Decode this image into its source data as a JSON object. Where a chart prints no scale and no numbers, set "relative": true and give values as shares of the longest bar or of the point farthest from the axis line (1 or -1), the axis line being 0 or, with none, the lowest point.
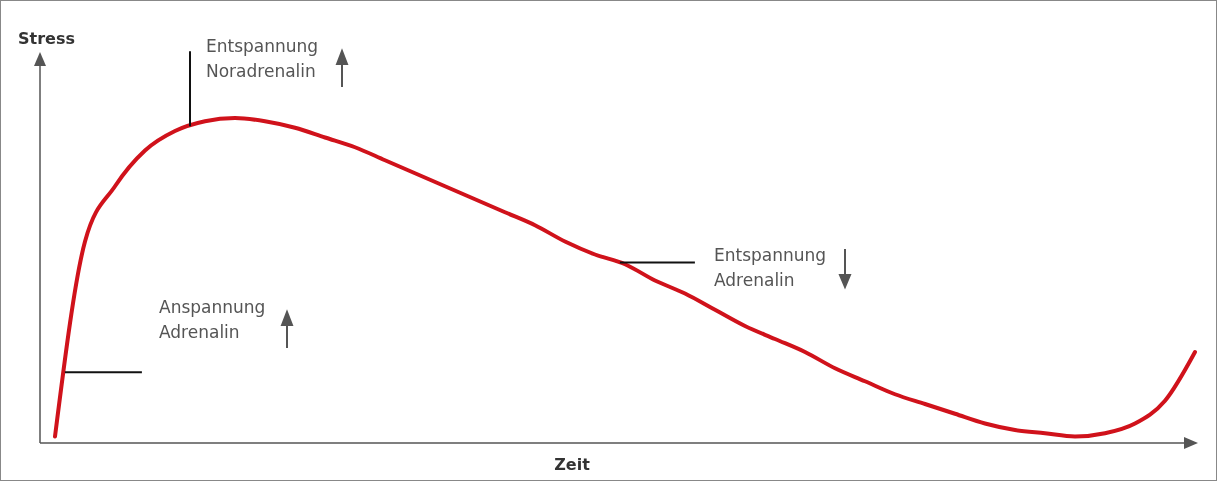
{
  "chart_data": {
    "type": "line",
    "relative": true,
    "xlabel": "Zeit",
    "ylabel": "Stress",
    "categories": [
      null,
      null,
      null,
      null,
      null,
      null,
      null,
      null,
      null,
      null,
      null,
      null,
      null,
      null,
      null,
      null,
      null,
      null,
      null,
      null,
      null,
      null,
      null,
      null,
      null,
      null,
      null,
      null,
      null,
      null,
      null,
      null,
      null,
      null,
      null,
      null,
      null,
      null,
      null
    ],
    "series": [
      {
        "color": "#d0121b",
        "values": [
          0.02,
          0.62,
          0.79,
          0.9,
          0.96,
          0.99,
          1,
          0.99,
          0.97,
          0.94,
          0.91,
          0.87,
          0.83,
          0.79,
          0.75,
          0.71,
          0.67,
          0.62,
          0.58,
          0.55,
          0.5,
          0.46,
          0.41,
          0.36,
          0.32,
          0.28,
          0.23,
          0.19,
          0.15,
          0.12,
          0.09,
          0.06,
          0.04,
          0.03,
          0.02,
          0.03,
          0.06,
          0.13,
          0.28
        ]
      }
    ],
    "annotations": [
      "Anspannung\nAdrenalin",
      "Entspannung\nNoradrenalin",
      "Entspannung\nAdrenalin"
    ],
    "marker": "none",
    "line_style": "solid"
  }
}
